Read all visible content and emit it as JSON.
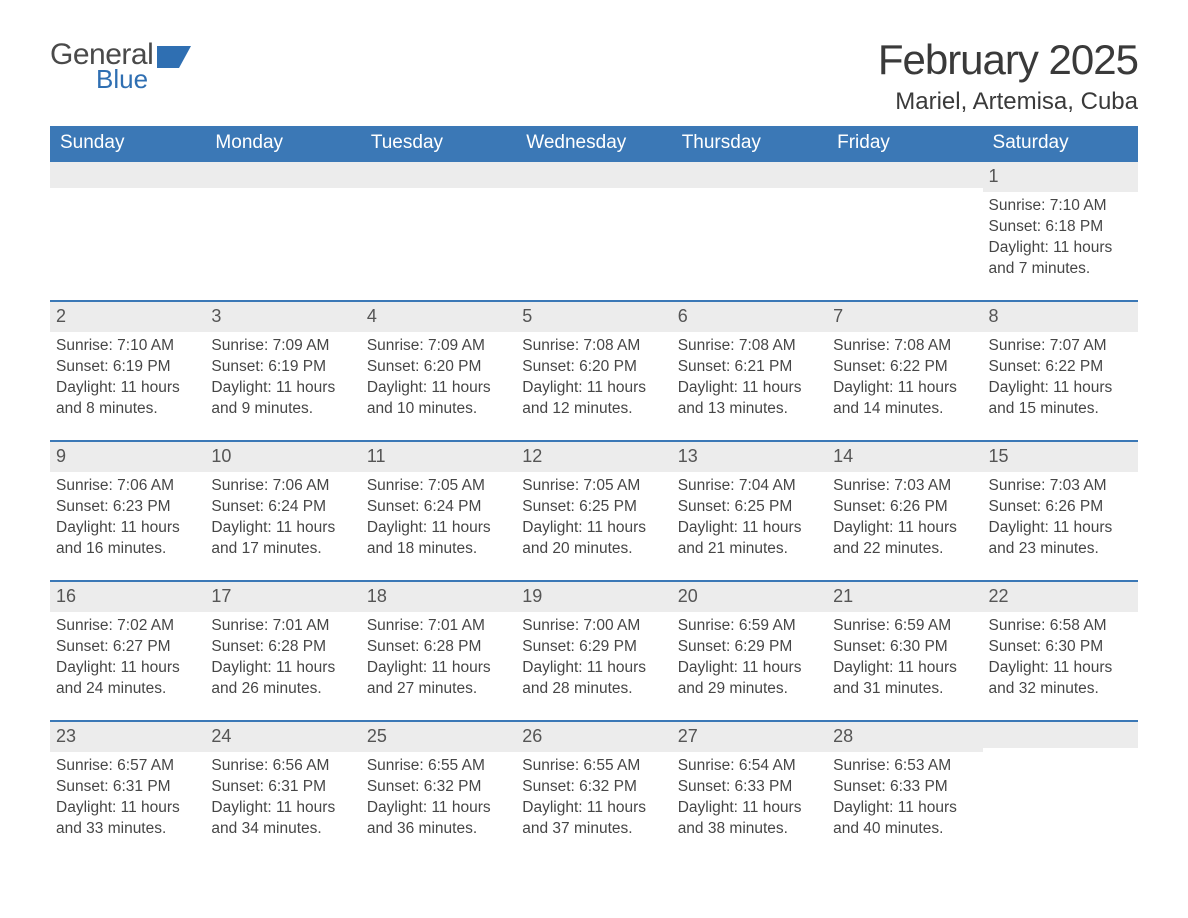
{
  "logo": {
    "general": "General",
    "blue": "Blue"
  },
  "title": "February 2025",
  "location": "Mariel, Artemisa, Cuba",
  "colors": {
    "header_bg": "#3b78b6",
    "header_text": "#ffffff",
    "daynum_bg": "#ececec",
    "week_border": "#3b78b6",
    "body_text": "#464646",
    "logo_blue": "#2f6fb2"
  },
  "day_headers": [
    "Sunday",
    "Monday",
    "Tuesday",
    "Wednesday",
    "Thursday",
    "Friday",
    "Saturday"
  ],
  "weeks": [
    [
      {
        "n": ""
      },
      {
        "n": ""
      },
      {
        "n": ""
      },
      {
        "n": ""
      },
      {
        "n": ""
      },
      {
        "n": ""
      },
      {
        "n": "1",
        "sr": "Sunrise: 7:10 AM",
        "ss": "Sunset: 6:18 PM",
        "dl1": "Daylight: 11 hours",
        "dl2": "and 7 minutes."
      }
    ],
    [
      {
        "n": "2",
        "sr": "Sunrise: 7:10 AM",
        "ss": "Sunset: 6:19 PM",
        "dl1": "Daylight: 11 hours",
        "dl2": "and 8 minutes."
      },
      {
        "n": "3",
        "sr": "Sunrise: 7:09 AM",
        "ss": "Sunset: 6:19 PM",
        "dl1": "Daylight: 11 hours",
        "dl2": "and 9 minutes."
      },
      {
        "n": "4",
        "sr": "Sunrise: 7:09 AM",
        "ss": "Sunset: 6:20 PM",
        "dl1": "Daylight: 11 hours",
        "dl2": "and 10 minutes."
      },
      {
        "n": "5",
        "sr": "Sunrise: 7:08 AM",
        "ss": "Sunset: 6:20 PM",
        "dl1": "Daylight: 11 hours",
        "dl2": "and 12 minutes."
      },
      {
        "n": "6",
        "sr": "Sunrise: 7:08 AM",
        "ss": "Sunset: 6:21 PM",
        "dl1": "Daylight: 11 hours",
        "dl2": "and 13 minutes."
      },
      {
        "n": "7",
        "sr": "Sunrise: 7:08 AM",
        "ss": "Sunset: 6:22 PM",
        "dl1": "Daylight: 11 hours",
        "dl2": "and 14 minutes."
      },
      {
        "n": "8",
        "sr": "Sunrise: 7:07 AM",
        "ss": "Sunset: 6:22 PM",
        "dl1": "Daylight: 11 hours",
        "dl2": "and 15 minutes."
      }
    ],
    [
      {
        "n": "9",
        "sr": "Sunrise: 7:06 AM",
        "ss": "Sunset: 6:23 PM",
        "dl1": "Daylight: 11 hours",
        "dl2": "and 16 minutes."
      },
      {
        "n": "10",
        "sr": "Sunrise: 7:06 AM",
        "ss": "Sunset: 6:24 PM",
        "dl1": "Daylight: 11 hours",
        "dl2": "and 17 minutes."
      },
      {
        "n": "11",
        "sr": "Sunrise: 7:05 AM",
        "ss": "Sunset: 6:24 PM",
        "dl1": "Daylight: 11 hours",
        "dl2": "and 18 minutes."
      },
      {
        "n": "12",
        "sr": "Sunrise: 7:05 AM",
        "ss": "Sunset: 6:25 PM",
        "dl1": "Daylight: 11 hours",
        "dl2": "and 20 minutes."
      },
      {
        "n": "13",
        "sr": "Sunrise: 7:04 AM",
        "ss": "Sunset: 6:25 PM",
        "dl1": "Daylight: 11 hours",
        "dl2": "and 21 minutes."
      },
      {
        "n": "14",
        "sr": "Sunrise: 7:03 AM",
        "ss": "Sunset: 6:26 PM",
        "dl1": "Daylight: 11 hours",
        "dl2": "and 22 minutes."
      },
      {
        "n": "15",
        "sr": "Sunrise: 7:03 AM",
        "ss": "Sunset: 6:26 PM",
        "dl1": "Daylight: 11 hours",
        "dl2": "and 23 minutes."
      }
    ],
    [
      {
        "n": "16",
        "sr": "Sunrise: 7:02 AM",
        "ss": "Sunset: 6:27 PM",
        "dl1": "Daylight: 11 hours",
        "dl2": "and 24 minutes."
      },
      {
        "n": "17",
        "sr": "Sunrise: 7:01 AM",
        "ss": "Sunset: 6:28 PM",
        "dl1": "Daylight: 11 hours",
        "dl2": "and 26 minutes."
      },
      {
        "n": "18",
        "sr": "Sunrise: 7:01 AM",
        "ss": "Sunset: 6:28 PM",
        "dl1": "Daylight: 11 hours",
        "dl2": "and 27 minutes."
      },
      {
        "n": "19",
        "sr": "Sunrise: 7:00 AM",
        "ss": "Sunset: 6:29 PM",
        "dl1": "Daylight: 11 hours",
        "dl2": "and 28 minutes."
      },
      {
        "n": "20",
        "sr": "Sunrise: 6:59 AM",
        "ss": "Sunset: 6:29 PM",
        "dl1": "Daylight: 11 hours",
        "dl2": "and 29 minutes."
      },
      {
        "n": "21",
        "sr": "Sunrise: 6:59 AM",
        "ss": "Sunset: 6:30 PM",
        "dl1": "Daylight: 11 hours",
        "dl2": "and 31 minutes."
      },
      {
        "n": "22",
        "sr": "Sunrise: 6:58 AM",
        "ss": "Sunset: 6:30 PM",
        "dl1": "Daylight: 11 hours",
        "dl2": "and 32 minutes."
      }
    ],
    [
      {
        "n": "23",
        "sr": "Sunrise: 6:57 AM",
        "ss": "Sunset: 6:31 PM",
        "dl1": "Daylight: 11 hours",
        "dl2": "and 33 minutes."
      },
      {
        "n": "24",
        "sr": "Sunrise: 6:56 AM",
        "ss": "Sunset: 6:31 PM",
        "dl1": "Daylight: 11 hours",
        "dl2": "and 34 minutes."
      },
      {
        "n": "25",
        "sr": "Sunrise: 6:55 AM",
        "ss": "Sunset: 6:32 PM",
        "dl1": "Daylight: 11 hours",
        "dl2": "and 36 minutes."
      },
      {
        "n": "26",
        "sr": "Sunrise: 6:55 AM",
        "ss": "Sunset: 6:32 PM",
        "dl1": "Daylight: 11 hours",
        "dl2": "and 37 minutes."
      },
      {
        "n": "27",
        "sr": "Sunrise: 6:54 AM",
        "ss": "Sunset: 6:33 PM",
        "dl1": "Daylight: 11 hours",
        "dl2": "and 38 minutes."
      },
      {
        "n": "28",
        "sr": "Sunrise: 6:53 AM",
        "ss": "Sunset: 6:33 PM",
        "dl1": "Daylight: 11 hours",
        "dl2": "and 40 minutes."
      },
      {
        "n": ""
      }
    ]
  ]
}
